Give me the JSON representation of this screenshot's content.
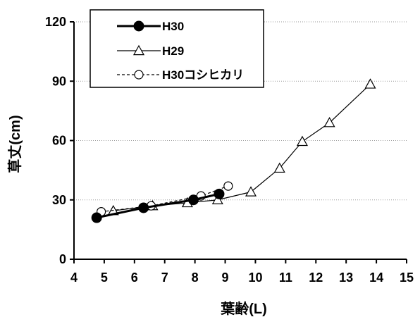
{
  "chart_data": {
    "type": "line",
    "xlabel": "葉齢(L)",
    "ylabel": "草丈(cm)",
    "xlim": [
      4,
      15
    ],
    "ylim": [
      0,
      120
    ],
    "xticks": [
      "4",
      "5",
      "6",
      "7",
      "8",
      "9",
      "10",
      "11",
      "12",
      "13",
      "14",
      "15"
    ],
    "yticks": [
      "0",
      "30",
      "60",
      "90",
      "120"
    ],
    "grid": "horizontal dotted",
    "legend_position": "top-left",
    "series": [
      {
        "name": "H30",
        "marker": "filled-circle",
        "line": "solid-thick",
        "x": [
          4.75,
          6.3,
          7.95,
          8.8
        ],
        "y": [
          21,
          26,
          30,
          33
        ]
      },
      {
        "name": "H29",
        "marker": "open-triangle",
        "line": "solid-thin",
        "x": [
          5.3,
          6.6,
          7.75,
          8.75,
          9.85,
          10.8,
          11.55,
          12.45,
          13.8
        ],
        "y": [
          24.5,
          27,
          28.5,
          30,
          34,
          46,
          59.5,
          69,
          88.5
        ]
      },
      {
        "name": "H30コシヒカリ",
        "marker": "open-circle",
        "line": "dashed",
        "x": [
          4.9,
          6.55,
          8.2,
          9.1
        ],
        "y": [
          24,
          27,
          32,
          37
        ]
      }
    ]
  }
}
